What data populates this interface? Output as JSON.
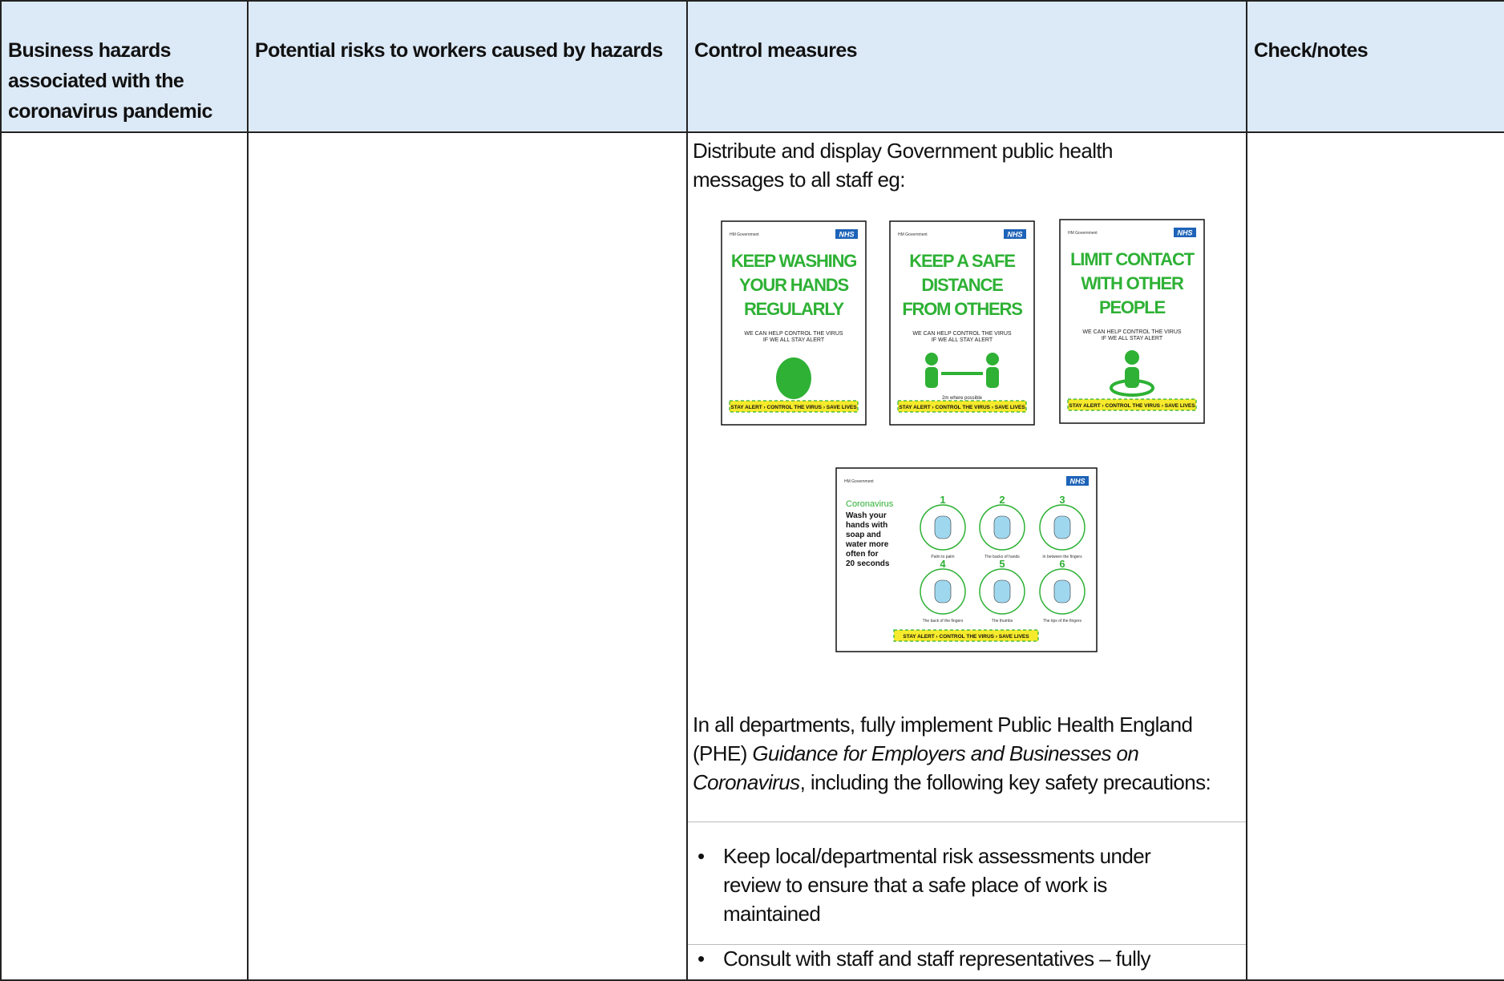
{
  "header": [
    "Business hazards associated with the coronavirus pandemic",
    "Potential risks to workers caused by hazards",
    "Control measures",
    "Check/notes"
  ],
  "control_measures": {
    "intro": "Distribute and display Government public health messages to all staff eg:",
    "posters": [
      {
        "org": "HM Government",
        "badge": "NHS",
        "headline": [
          "KEEP WASHING",
          "YOUR HANDS",
          "REGULARLY"
        ],
        "sub": [
          "WE CAN HELP CONTROL THE VIRUS",
          "IF WE ALL STAY ALERT"
        ],
        "footer": "STAY ALERT › CONTROL THE VIRUS › SAVE LIVES"
      },
      {
        "org": "HM Government",
        "badge": "NHS",
        "headline": [
          "KEEP A SAFE",
          "DISTANCE",
          "FROM OTHERS"
        ],
        "sub": [
          "WE CAN HELP CONTROL THE VIRUS",
          "IF WE ALL STAY ALERT"
        ],
        "note": "2m where possible",
        "footer": "STAY ALERT › CONTROL THE VIRUS › SAVE LIVES"
      },
      {
        "org": "HM Government",
        "badge": "NHS",
        "headline": [
          "LIMIT CONTACT",
          "WITH OTHER",
          "PEOPLE"
        ],
        "sub": [
          "WE CAN HELP CONTROL THE VIRUS",
          "IF WE ALL STAY ALERT"
        ],
        "footer": "STAY ALERT › CONTROL THE VIRUS › SAVE LIVES"
      }
    ],
    "handwash": {
      "org": "HM Government",
      "badge": "NHS",
      "title": "Coronavirus",
      "lines": [
        "Wash your",
        "hands with",
        "soap and",
        "water more",
        "often for",
        "20 seconds"
      ],
      "steps": [
        {
          "n": "1",
          "caption": "Palm to palm"
        },
        {
          "n": "2",
          "caption": "The backs of hands"
        },
        {
          "n": "3",
          "caption": "In between the fingers"
        },
        {
          "n": "4",
          "caption": "The back of the fingers"
        },
        {
          "n": "5",
          "caption": "The thumbs"
        },
        {
          "n": "6",
          "caption": "The tips of the fingers"
        }
      ],
      "footer": "STAY ALERT › CONTROL THE VIRUS › SAVE LIVES"
    },
    "guidance": {
      "before": "In all departments, fully implement Public Health England (PHE) ",
      "italic": "Guidance for Employers and Businesses on Coronavirus",
      "after": ", including the following key safety precautions:"
    },
    "bullets": [
      "Keep local/departmental risk assessments under review to ensure that a safe place of work is maintained",
      "Consult with staff and staff representatives – fully"
    ]
  }
}
